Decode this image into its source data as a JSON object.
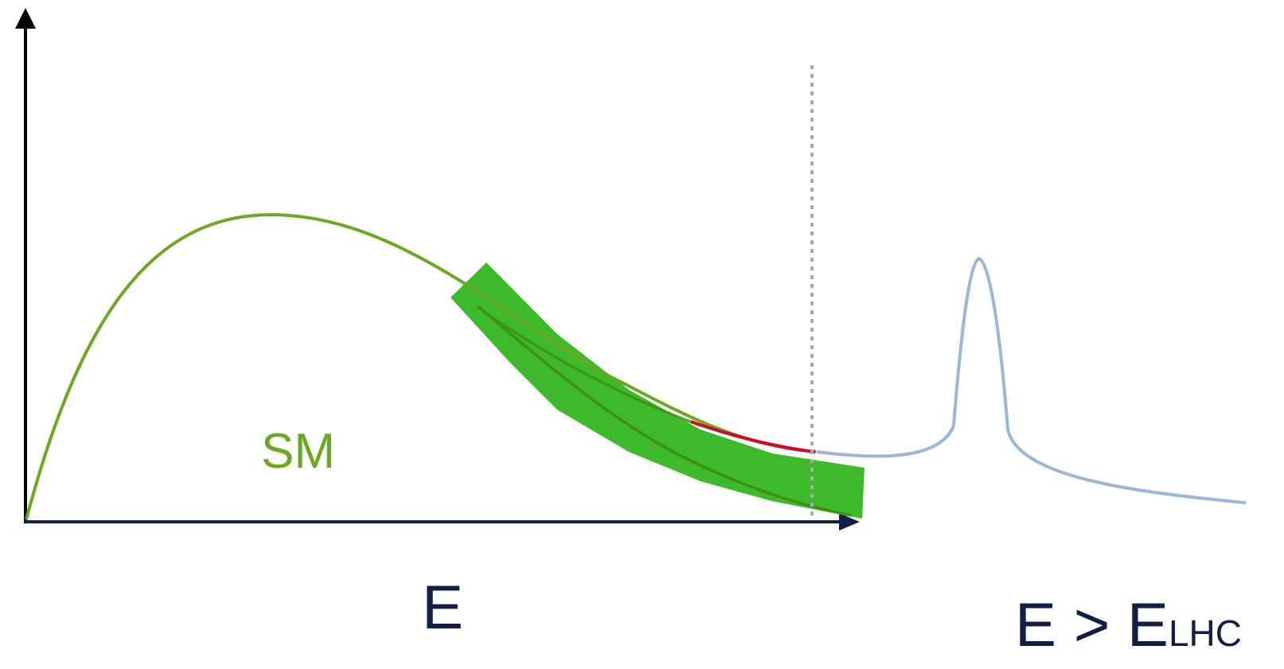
{
  "labels": {
    "sm": "SM",
    "energy": "E",
    "threshold_main": "E > E",
    "threshold_sub": "LHC"
  },
  "colors": {
    "axis_y": "#000000",
    "axis_x": "#0f1f45",
    "sm_curve": "#6aaa23",
    "band": "#3dba2b",
    "band_center": "#3f8f10",
    "deviation": "#d10a2d",
    "new_physics": "#9ab7d6",
    "divider": "#a9a9a9",
    "label_sm": "#6aaa23",
    "label_text": "#0f1f45"
  }
}
